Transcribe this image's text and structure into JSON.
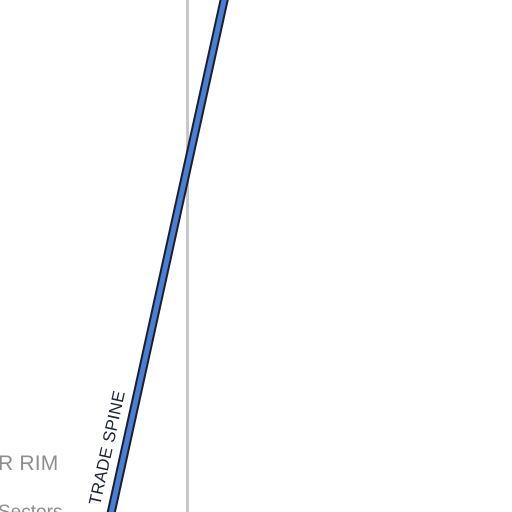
{
  "map": {
    "region_label": "R RIM",
    "sub_label": "Sectors",
    "route": {
      "name": "TRADE SPINE",
      "fill_color": "#4a7fd4",
      "casing_color": "#1a1f2e"
    },
    "boundary_color": "#c8c8c8"
  }
}
